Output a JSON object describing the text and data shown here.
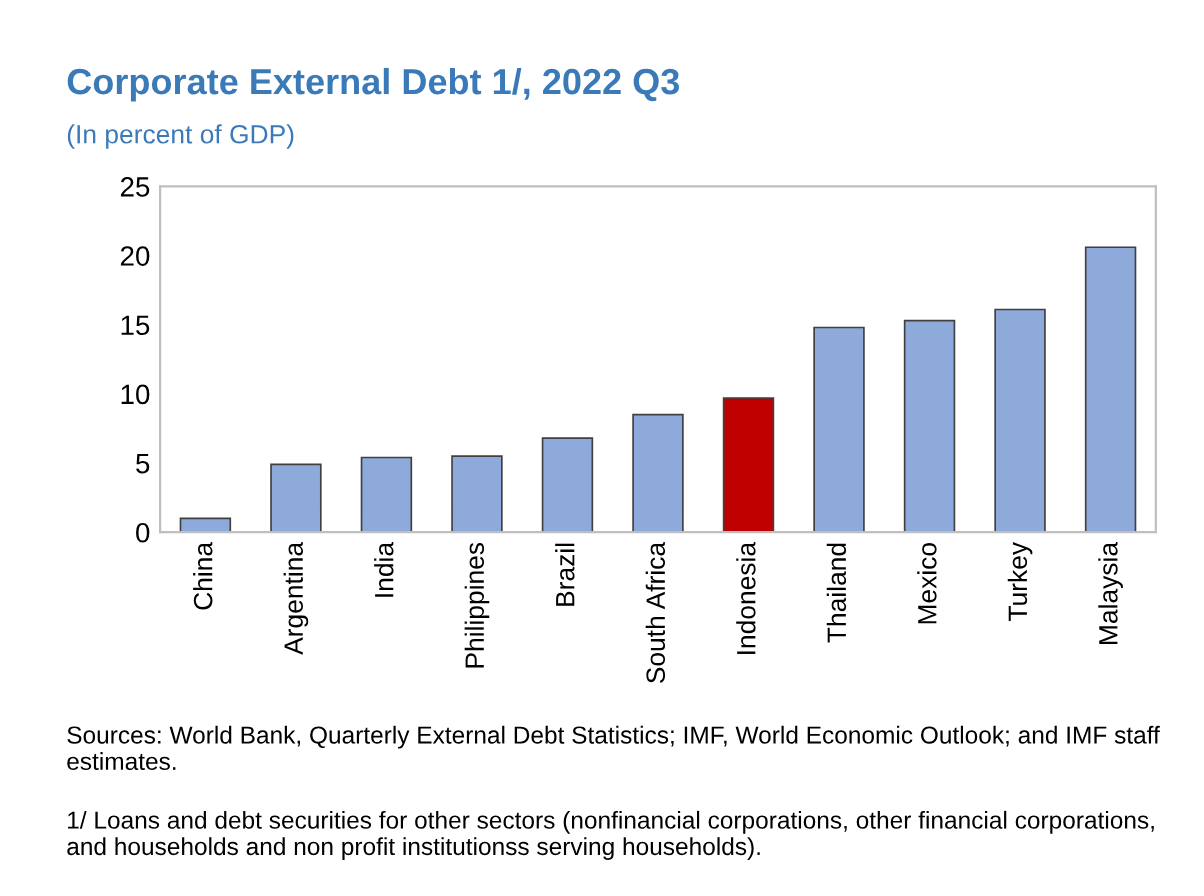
{
  "chart_data": {
    "type": "bar",
    "title": "Corporate External Debt 1/, 2022 Q3",
    "subtitle": "(In percent of GDP)",
    "categories": [
      "China",
      "Argentina",
      "India",
      "Philippines",
      "Brazil",
      "South Africa",
      "Indonesia",
      "Thailand",
      "Mexico",
      "Turkey",
      "Malaysia"
    ],
    "values": [
      1.0,
      4.9,
      5.4,
      5.5,
      6.8,
      8.5,
      9.7,
      14.8,
      15.3,
      16.1,
      20.6
    ],
    "colors": [
      "#8eaadb",
      "#8eaadb",
      "#8eaadb",
      "#8eaadb",
      "#8eaadb",
      "#8eaadb",
      "#c00000",
      "#8eaadb",
      "#8eaadb",
      "#8eaadb",
      "#8eaadb"
    ],
    "ylim": [
      0,
      25
    ],
    "yticks": [
      0,
      5,
      10,
      15,
      20,
      25
    ],
    "grid": false,
    "legend": false,
    "annotations": [
      "Sources: World Bank, Quarterly External Debt Statistics; IMF, World Economic Outlook; and IMF staff estimates.",
      "1/ Loans and debt securities for other sectors (nonfinancial corporations, other financial corporations, and households and non profit institutionss serving households)."
    ]
  }
}
